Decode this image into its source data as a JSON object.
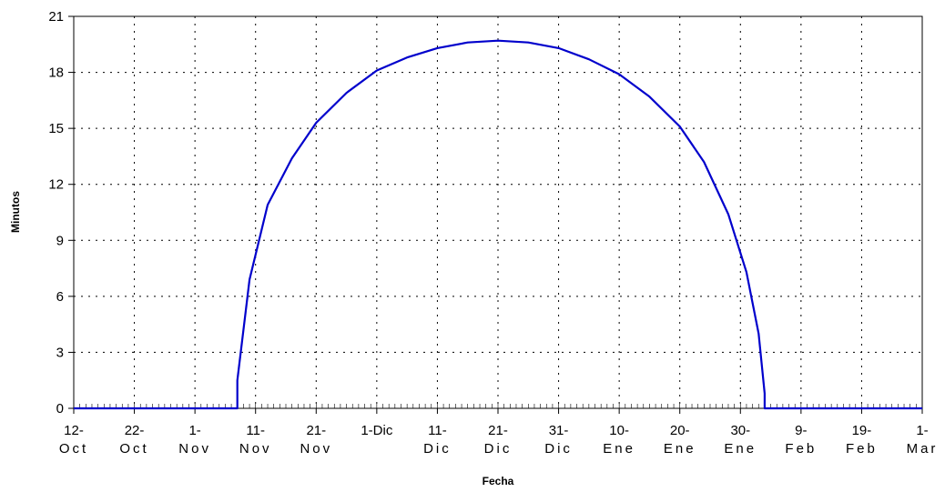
{
  "chart_data": {
    "type": "line",
    "xlabel": "Fecha",
    "ylabel": "Minutos",
    "ylim": [
      0,
      21
    ],
    "yticks": [
      0,
      3,
      6,
      9,
      12,
      15,
      18,
      21
    ],
    "xlim": [
      "Oct 12",
      "Mar 1"
    ],
    "xticks": [
      {
        "date": "Oct 12",
        "line1": "12-",
        "line2": "Oct"
      },
      {
        "date": "Oct 22",
        "line1": "22-",
        "line2": "Oct"
      },
      {
        "date": "Nov 1",
        "line1": "1-",
        "line2": "Nov"
      },
      {
        "date": "Nov 11",
        "line1": "11-",
        "line2": "Nov"
      },
      {
        "date": "Nov 21",
        "line1": "21-",
        "line2": "Nov"
      },
      {
        "date": "Dec 1",
        "line1": "1-Dic",
        "line2": ""
      },
      {
        "date": "Dec 11",
        "line1": "11-",
        "line2": "Dic"
      },
      {
        "date": "Dec 21",
        "line1": "21-",
        "line2": "Dic"
      },
      {
        "date": "Dec 31",
        "line1": "31-",
        "line2": "Dic"
      },
      {
        "date": "Jan 10",
        "line1": "10-",
        "line2": "Ene"
      },
      {
        "date": "Jan 20",
        "line1": "20-",
        "line2": "Ene"
      },
      {
        "date": "Jan 30",
        "line1": "30-",
        "line2": "Ene"
      },
      {
        "date": "Feb 9",
        "line1": "9-",
        "line2": "Feb"
      },
      {
        "date": "Feb 19",
        "line1": "19-",
        "line2": "Feb"
      },
      {
        "date": "Mar 1",
        "line1": "1-",
        "line2": "Mar"
      }
    ],
    "grid": true,
    "series": [
      {
        "color": "#0000cc",
        "x": [
          "Oct 12",
          "Nov 8",
          "Nov 8",
          "Nov 10",
          "Nov 13",
          "Nov 17",
          "Nov 21",
          "Nov 26",
          "Dec 1",
          "Dec 6",
          "Dec 11",
          "Dec 16",
          "Dec 21",
          "Dec 26",
          "Dec 31",
          "Jan 5",
          "Jan 10",
          "Jan 15",
          "Jan 20",
          "Jan 24",
          "Jan 28",
          "Jan 31",
          "Feb 2",
          "Feb 3",
          "Feb 3",
          "Mar 1"
        ],
        "y": [
          0,
          0,
          1.5,
          6.9,
          10.9,
          13.4,
          15.3,
          16.9,
          18.1,
          18.8,
          19.3,
          19.6,
          19.7,
          19.6,
          19.3,
          18.7,
          17.9,
          16.7,
          15.1,
          13.2,
          10.4,
          7.3,
          4.0,
          0.8,
          0,
          0
        ]
      }
    ]
  }
}
